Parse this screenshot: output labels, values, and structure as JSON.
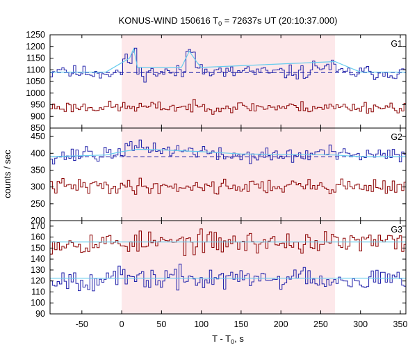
{
  "figure": {
    "title_main": "KONUS-WIND 150616 T",
    "title_sub": "0",
    "title_rest": " = 72637s UT (20:10:37.000)",
    "xlabel_main": "T - T",
    "xlabel_sub": "0",
    "xlabel_rest": ", s",
    "ylabel": "counts / sec"
  },
  "colors": {
    "highlight": "#fde8ea",
    "blue": "#2222aa",
    "red": "#8b0000",
    "light_blue": "#66ccee",
    "axis": "#000000"
  },
  "chart_data": {
    "type": "line",
    "x_range": [
      -90,
      357
    ],
    "x_ticks": [
      -50,
      0,
      50,
      100,
      150,
      200,
      250,
      300,
      350
    ],
    "highlight_interval": [
      0,
      268
    ],
    "bin_width": 2.944,
    "panels": [
      {
        "label": "G1",
        "ylim": [
          850,
          1250
        ],
        "y_ticks": [
          850,
          900,
          950,
          1000,
          1050,
          1100,
          1150,
          1200,
          1250
        ],
        "background_level": 1088,
        "series": [
          {
            "color": "blue",
            "mean": 1088,
            "noise": 15,
            "seed": 11,
            "features": [
              [
                -85,
                -70,
                20
              ],
              [
                0,
                12,
                50
              ],
              [
                12,
                18,
                90
              ],
              [
                80,
                83,
                85
              ],
              [
                83,
                92,
                100
              ],
              [
                92,
                100,
                45
              ],
              [
                150,
                160,
                15
              ],
              [
                240,
                268,
                25
              ]
            ]
          },
          {
            "color": "red",
            "mean": 940,
            "noise": 12,
            "seed": 23,
            "features": []
          }
        ],
        "fits": [
          {
            "x": [
              -90,
              -20,
              0,
              10,
              15,
              20,
              75,
              85,
              95,
              100,
              268,
              300,
              357
            ],
            "y": [
              1090,
              1090,
              1130,
              1150,
              1190,
              1110,
              1110,
              1180,
              1130,
              1110,
              1135,
              1090,
              1090
            ]
          }
        ]
      },
      {
        "label": "G2",
        "ylim": [
          200,
          475
        ],
        "y_ticks": [
          200,
          250,
          300,
          350,
          400,
          450
        ],
        "background_level": 390,
        "series": [
          {
            "color": "blue",
            "mean": 393,
            "noise": 11,
            "seed": 37,
            "features": [
              [
                -50,
                -40,
                20
              ],
              [
                -20,
                0,
                8
              ],
              [
                0,
                50,
                22
              ],
              [
                50,
                110,
                15
              ],
              [
                240,
                268,
                10
              ]
            ]
          },
          {
            "color": "red",
            "mean": 302,
            "noise": 11,
            "seed": 41,
            "features": []
          }
        ],
        "fits": [
          {
            "x": [
              -90,
              -20,
              0,
              20,
              50,
              100,
              150,
              268,
              300,
              357
            ],
            "y": [
              390,
              395,
              405,
              412,
              410,
              405,
              398,
              395,
              390,
              390
            ]
          }
        ]
      },
      {
        "label": "G3",
        "ylim": [
          90,
          175
        ],
        "y_ticks": [
          90,
          100,
          110,
          120,
          130,
          140,
          150,
          160,
          170
        ],
        "background_level": null,
        "series": [
          {
            "color": "red",
            "mean": 155,
            "noise": 5,
            "seed": 53,
            "features": []
          },
          {
            "color": "blue",
            "mean": 122,
            "noise": 5,
            "seed": 67,
            "features": [
              [
                228,
                232,
                20
              ]
            ]
          }
        ],
        "fits": [
          {
            "x": [
              -90,
              357
            ],
            "y": [
              155.5,
              155.5
            ]
          },
          {
            "x": [
              -90,
              357
            ],
            "y": [
              122.5,
              122.5
            ]
          }
        ]
      }
    ]
  }
}
